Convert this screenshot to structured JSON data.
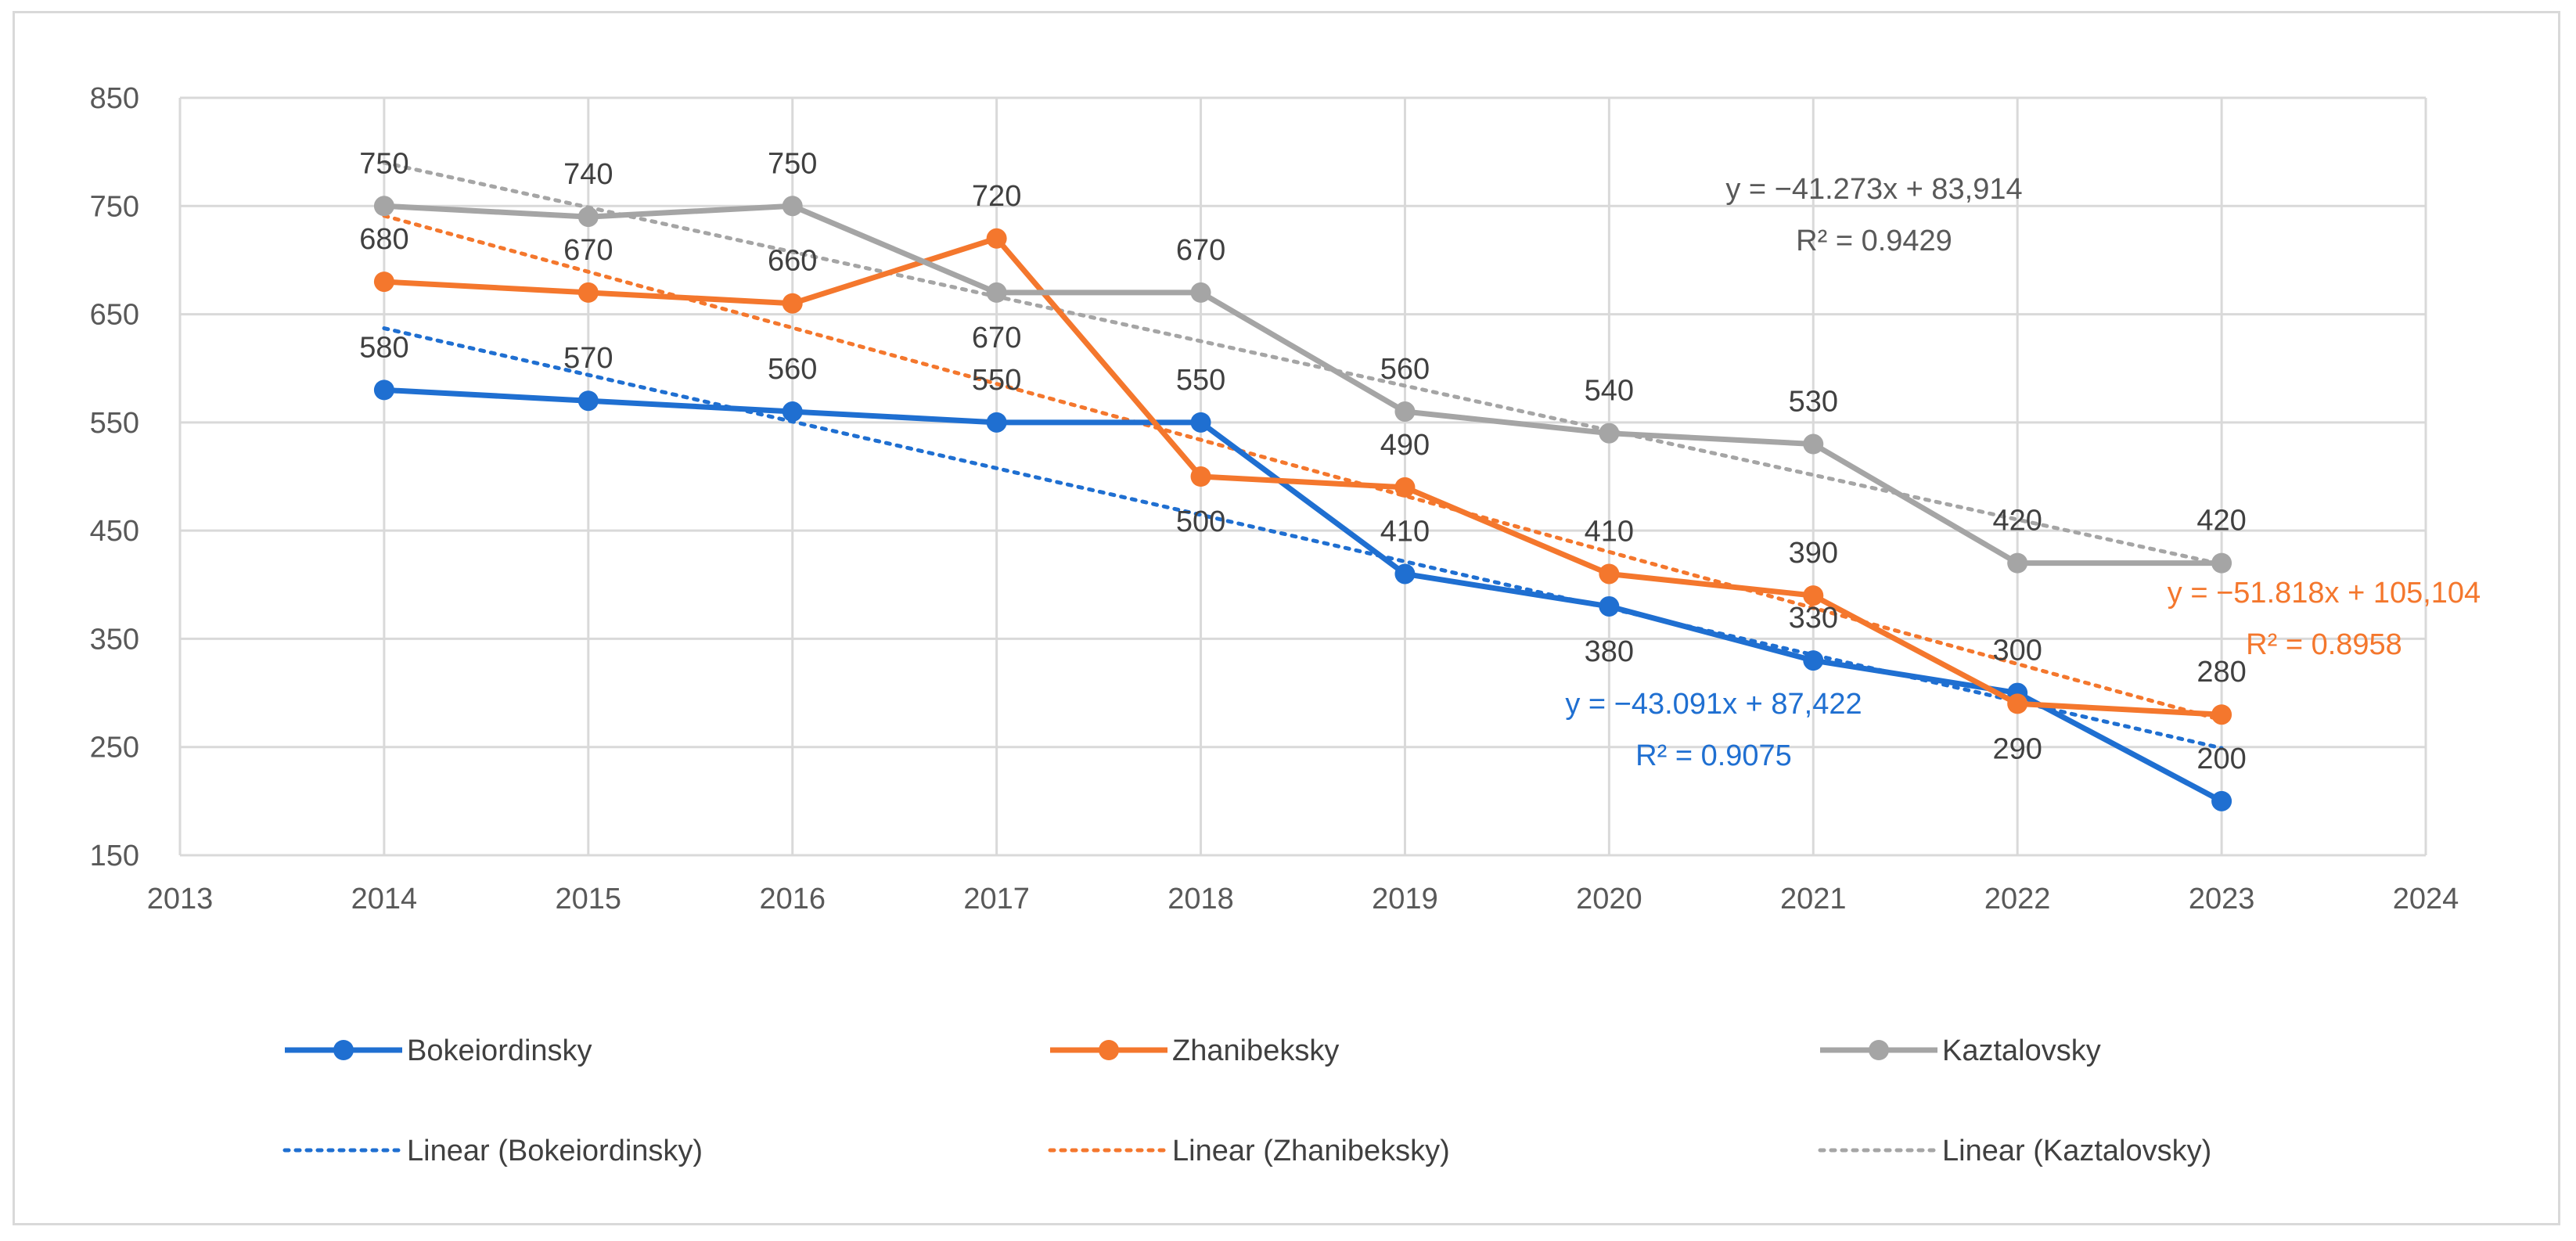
{
  "chart_data": {
    "type": "line",
    "title": "",
    "xlabel": "",
    "ylabel": "",
    "xlim": [
      2013,
      2024
    ],
    "ylim": [
      150,
      850
    ],
    "xticks": [
      2013,
      2014,
      2015,
      2016,
      2017,
      2018,
      2019,
      2020,
      2021,
      2022,
      2023,
      2024
    ],
    "yticks": [
      150,
      250,
      350,
      450,
      550,
      650,
      750,
      850
    ],
    "grid": true,
    "legend_position": "bottom",
    "x": [
      2014,
      2015,
      2016,
      2017,
      2018,
      2019,
      2020,
      2021,
      2022,
      2023
    ],
    "series": [
      {
        "name": "Bokeiordinsky",
        "color": "#1f6fd1",
        "values": [
          580,
          570,
          560,
          550,
          550,
          410,
          380,
          330,
          300,
          200
        ],
        "label_side": [
          "top",
          "top",
          "top",
          "top",
          "top",
          "top",
          "bottom",
          "top",
          "top",
          "top"
        ],
        "trend": {
          "name": "Linear (Bokeiordinsky)",
          "start": 637,
          "end": 249,
          "equation": "y = −43.091x + 87,422",
          "r2": "R² = 0.9075"
        }
      },
      {
        "name": "Zhanibeksky",
        "color": "#f4772d",
        "values": [
          680,
          670,
          660,
          720,
          500,
          490,
          410,
          390,
          290,
          280
        ],
        "label_side": [
          "top",
          "top",
          "top",
          "top",
          "bottom",
          "top",
          "top",
          "top",
          "bottom",
          "top"
        ],
        "trend": {
          "name": "Linear (Zhanibeksky)",
          "start": 741,
          "end": 275,
          "equation": "y = −51.818x + 105,104",
          "r2": "R² = 0.8958"
        }
      },
      {
        "name": "Kaztalovsky",
        "color": "#a5a5a5",
        "values": [
          750,
          740,
          750,
          670,
          670,
          560,
          540,
          530,
          420,
          420
        ],
        "label_side": [
          "top",
          "top",
          "top",
          "bottom",
          "top",
          "top",
          "top",
          "top",
          "top",
          "top"
        ],
        "trend": {
          "name": "Linear (Kaztalovsky)",
          "start": 790,
          "end": 419,
          "equation": "y = −41.273x + 83,914",
          "r2": "R² = 0.9429"
        }
      }
    ],
    "trend_label_color": "#595959"
  }
}
